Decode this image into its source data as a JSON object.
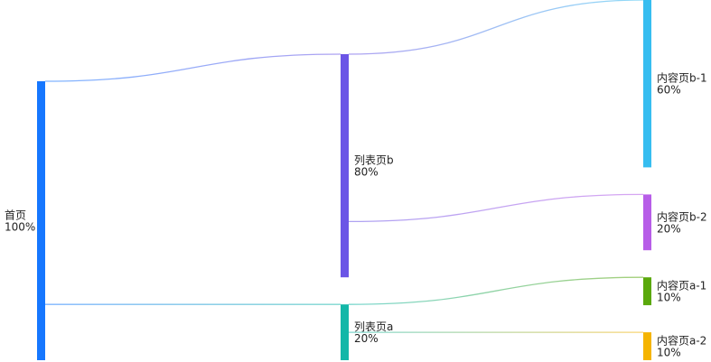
{
  "chart_data": {
    "type": "sankey",
    "nodes": [
      {
        "id": "home",
        "name": "首页",
        "percent": "100%",
        "value": 100,
        "column": 0,
        "color": "#1677ff"
      },
      {
        "id": "list_b",
        "name": "列表页b",
        "percent": "80%",
        "value": 80,
        "column": 1,
        "color": "#6b55e6"
      },
      {
        "id": "list_a",
        "name": "列表页a",
        "percent": "20%",
        "value": 20,
        "column": 1,
        "color": "#13b7a8"
      },
      {
        "id": "content_b1",
        "name": "内容页b-1",
        "percent": "60%",
        "value": 60,
        "column": 2,
        "color": "#36bdf0"
      },
      {
        "id": "content_b2",
        "name": "内容页b-2",
        "percent": "20%",
        "value": 20,
        "column": 2,
        "color": "#b75de8"
      },
      {
        "id": "content_a1",
        "name": "内容页a-1",
        "percent": "10%",
        "value": 10,
        "column": 2,
        "color": "#5aa80c"
      },
      {
        "id": "content_a2",
        "name": "内容页a-2",
        "percent": "10%",
        "value": 10,
        "column": 2,
        "color": "#f5b400"
      }
    ],
    "links": [
      {
        "source": "home",
        "target": "list_b",
        "value": 80
      },
      {
        "source": "home",
        "target": "list_a",
        "value": 20
      },
      {
        "source": "list_b",
        "target": "content_b1",
        "value": 60
      },
      {
        "source": "list_b",
        "target": "content_b2",
        "value": 20
      },
      {
        "source": "list_a",
        "target": "content_a1",
        "value": 10
      },
      {
        "source": "list_a",
        "target": "content_a2",
        "value": 10
      }
    ]
  }
}
